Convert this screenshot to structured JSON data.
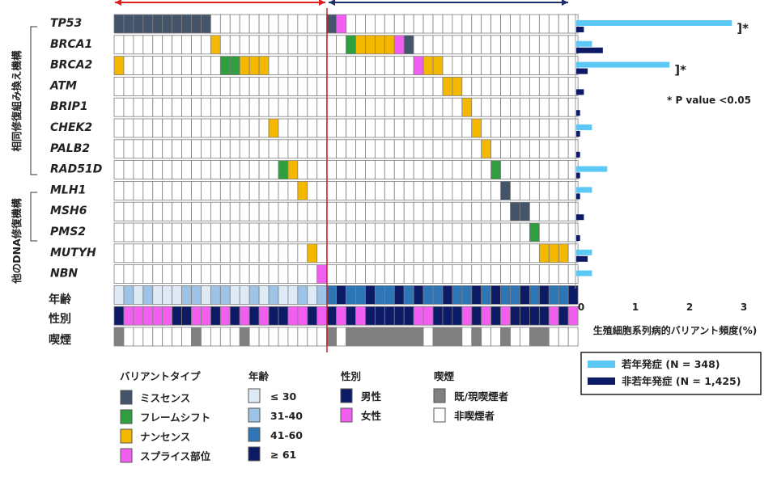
{
  "colors": {
    "missense": "#44546a",
    "frameshift": "#2e9e3f",
    "nonsense": "#f5b800",
    "splice": "#f25ef0",
    "age_le30": "#deebf7",
    "age_31_40": "#9dc3e6",
    "age_41_60": "#2e75b6",
    "age_ge61": "#0d1a66",
    "male": "#0d1a66",
    "female": "#f25ef0",
    "smoker": "#808080",
    "nonsmoker": "#ffffff",
    "young_bar": "#5bc8f5",
    "old_bar": "#0d1a66",
    "arrow_left": "#e02020",
    "arrow_right": "#1f2d6b",
    "divider": "#c0282c"
  },
  "group_labels": {
    "hr": "相同修復組み換え機構",
    "other": "他のDNA修復機構"
  },
  "row_labels": {
    "age": "年齢",
    "sex": "性別",
    "smoking": "喫煙"
  },
  "legend": {
    "variant_title": "バリアントタイプ",
    "variant_items": [
      "ミスセンス",
      "フレームシフト",
      "ナンセンス",
      "スプライス部位"
    ],
    "age_title": "年齢",
    "age_items": [
      "≤ 30",
      "31-40",
      "41-60",
      "≥ 61"
    ],
    "sex_title": "性別",
    "sex_items": [
      "男性",
      "女性"
    ],
    "smoking_title": "喫煙",
    "smoking_items": [
      "既/現喫煙者",
      "非喫煙者"
    ],
    "bar_items": [
      "若年発症 (N = 348)",
      "非若年発症 (N = 1,425)"
    ]
  },
  "chart_data": {
    "type": "heatmap",
    "genes": [
      "TP53",
      "BRCA1",
      "BRCA2",
      "ATM",
      "BRIP1",
      "CHEK2",
      "PALB2",
      "RAD51D",
      "MLH1",
      "MSH6",
      "PMS2",
      "MUTYH",
      "NBN"
    ],
    "young_patient_count": 22,
    "total_patient_count": 48,
    "variant_code_key": {
      "M": "ミスセンス",
      "F": "フレームシフト",
      "N": "ナンセンス",
      "S": "スプライス部位"
    },
    "variants": [
      {
        "gene": "TP53",
        "patients": [
          1,
          2,
          3,
          4,
          5,
          6,
          7,
          8,
          9,
          10
        ],
        "type": "M"
      },
      {
        "gene": "BRCA2",
        "patients": [
          1
        ],
        "type": "N"
      },
      {
        "gene": "BRCA1",
        "patients": [
          11
        ],
        "type": "N"
      },
      {
        "gene": "BRCA2",
        "patients": [
          12,
          13
        ],
        "type": "F"
      },
      {
        "gene": "BRCA2",
        "patients": [
          14,
          15,
          16
        ],
        "type": "N"
      },
      {
        "gene": "CHEK2",
        "patients": [
          17
        ],
        "type": "N"
      },
      {
        "gene": "RAD51D",
        "patients": [
          18
        ],
        "type": "F"
      },
      {
        "gene": "RAD51D",
        "patients": [
          19
        ],
        "type": "N"
      },
      {
        "gene": "MLH1",
        "patients": [
          20
        ],
        "type": "N"
      },
      {
        "gene": "MUTYH",
        "patients": [
          21
        ],
        "type": "N"
      },
      {
        "gene": "NBN",
        "patients": [
          22
        ],
        "type": "S"
      },
      {
        "gene": "TP53",
        "patients": [
          23
        ],
        "type": "M"
      },
      {
        "gene": "TP53",
        "patients": [
          24
        ],
        "type": "S"
      },
      {
        "gene": "BRCA1",
        "patients": [
          25
        ],
        "type": "F"
      },
      {
        "gene": "BRCA1",
        "patients": [
          26,
          27,
          28,
          29
        ],
        "type": "N"
      },
      {
        "gene": "BRCA1",
        "patients": [
          30
        ],
        "type": "S"
      },
      {
        "gene": "BRCA1",
        "patients": [
          31
        ],
        "type": "M"
      },
      {
        "gene": "BRCA2",
        "patients": [
          32
        ],
        "type": "S"
      },
      {
        "gene": "BRCA2",
        "patients": [
          33,
          34
        ],
        "type": "N"
      },
      {
        "gene": "ATM",
        "patients": [
          35,
          36
        ],
        "type": "N"
      },
      {
        "gene": "BRIP1",
        "patients": [
          37
        ],
        "type": "N"
      },
      {
        "gene": "CHEK2",
        "patients": [
          38
        ],
        "type": "N"
      },
      {
        "gene": "PALB2",
        "patients": [
          39
        ],
        "type": "N"
      },
      {
        "gene": "RAD51D",
        "patients": [
          40
        ],
        "type": "F"
      },
      {
        "gene": "MLH1",
        "patients": [
          41
        ],
        "type": "M"
      },
      {
        "gene": "MSH6",
        "patients": [
          42,
          43
        ],
        "type": "M"
      },
      {
        "gene": "PMS2",
        "patients": [
          44
        ],
        "type": "F"
      },
      {
        "gene": "MUTYH",
        "patients": [
          45,
          46,
          47
        ],
        "type": "N"
      }
    ],
    "age_key": {
      "1": "≤ 30",
      "2": "31-40",
      "3": "41-60",
      "4": "≥ 61"
    },
    "age": [
      1,
      2,
      1,
      2,
      1,
      1,
      1,
      2,
      2,
      1,
      2,
      2,
      1,
      1,
      2,
      1,
      2,
      1,
      1,
      2,
      1,
      2,
      3,
      4,
      3,
      3,
      4,
      3,
      3,
      4,
      3,
      4,
      3,
      3,
      4,
      3,
      3,
      4,
      3,
      4,
      3,
      3,
      4,
      3,
      4,
      3,
      3,
      4
    ],
    "sex_key": {
      "m": "男性",
      "f": "女性"
    },
    "sex": [
      "m",
      "f",
      "f",
      "f",
      "f",
      "f",
      "m",
      "m",
      "f",
      "f",
      "m",
      "f",
      "m",
      "f",
      "m",
      "f",
      "m",
      "m",
      "f",
      "f",
      "m",
      "f",
      "m",
      "f",
      "m",
      "f",
      "m",
      "m",
      "m",
      "m",
      "m",
      "f",
      "f",
      "m",
      "m",
      "m",
      "f",
      "m",
      "f",
      "m",
      "f",
      "m",
      "m",
      "m",
      "m",
      "f",
      "m",
      "f"
    ],
    "smoking_key": {
      "s": "既/現喫煙者",
      "n": "非喫煙者"
    },
    "smoking": [
      "s",
      "n",
      "n",
      "n",
      "n",
      "n",
      "n",
      "n",
      "s",
      "n",
      "n",
      "n",
      "n",
      "s",
      "n",
      "n",
      "n",
      "n",
      "n",
      "n",
      "n",
      "n",
      "s",
      "n",
      "s",
      "s",
      "s",
      "s",
      "s",
      "s",
      "s",
      "s",
      "n",
      "s",
      "s",
      "s",
      "n",
      "s",
      "n",
      "n",
      "s",
      "n",
      "n",
      "s",
      "s",
      "n",
      "n",
      "n"
    ],
    "bar_chart": {
      "series_names": [
        "若年発症 (N = 348)",
        "非若年発症 (N = 1,425)"
      ],
      "young": [
        2.87,
        0.29,
        1.72,
        0,
        0,
        0.29,
        0,
        0.57,
        0.29,
        0,
        0,
        0.29,
        0.29
      ],
      "old": [
        0.14,
        0.49,
        0.21,
        0.14,
        0.07,
        0.07,
        0.07,
        0.07,
        0.07,
        0.14,
        0.07,
        0.21,
        0
      ],
      "significant": [
        true,
        false,
        true,
        false,
        false,
        false,
        false,
        false,
        false,
        false,
        false,
        false,
        false
      ],
      "sig_mark": "]*",
      "sig_note": "* P value <0.05",
      "xticks": [
        0,
        1,
        2,
        3
      ],
      "xlim": [
        0,
        3.1
      ],
      "xlabel": "生殖細胞系列病的バリアント頻度(%)"
    }
  }
}
